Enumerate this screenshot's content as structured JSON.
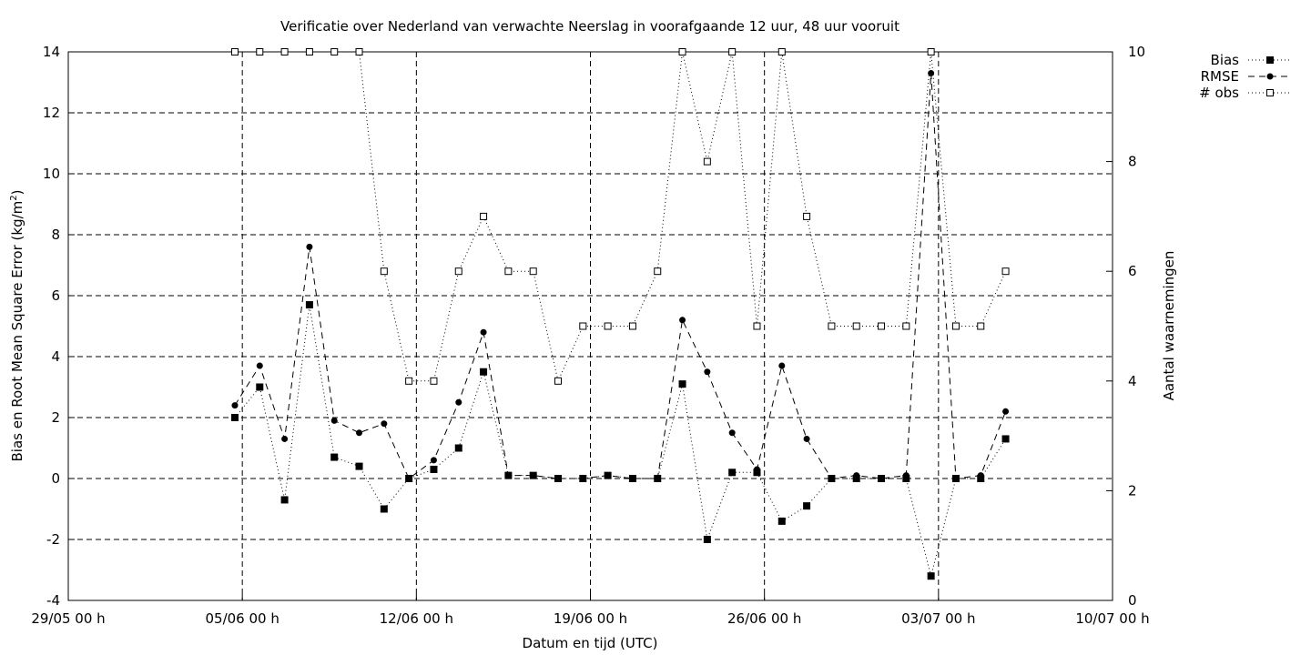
{
  "chart_data": {
    "type": "line",
    "title": "Verificatie over Nederland van verwachte Neerslag in voorafgaande 12 uur, 48 uur vooruit",
    "xlabel": "Datum en tijd (UTC)",
    "ylabel_left_main": "Bias en Root Mean Square Error (kg/m",
    "ylabel_left_sup": "2",
    "ylabel_left_end": ")",
    "ylabel_right": "Aantal waarnemingen",
    "x_ticks": [
      "29/05 00 h",
      "05/06 00 h",
      "12/06 00 h",
      "19/06 00 h",
      "26/06 00 h",
      "03/07 00 h",
      "10/07 00 h"
    ],
    "xlim_days": [
      0,
      42
    ],
    "ylim_left": [
      -4,
      14
    ],
    "y_ticks_left": [
      "-4",
      "-2",
      "0",
      "2",
      "4",
      "6",
      "8",
      "10",
      "12",
      "14"
    ],
    "ylim_right": [
      0,
      10
    ],
    "y_ticks_right": [
      "0",
      "2",
      "4",
      "6",
      "8",
      "10"
    ],
    "grid": true,
    "legend_position": "top-right outside",
    "x_days": [
      6.7,
      7.7,
      8.7,
      9.7,
      10.7,
      11.7,
      12.7,
      13.7,
      14.7,
      15.7,
      16.7,
      17.7,
      18.7,
      19.7,
      20.7,
      21.7,
      22.7,
      23.7,
      24.7,
      25.7,
      26.7,
      27.7,
      28.7,
      29.7,
      30.7,
      31.7,
      32.7,
      33.7,
      34.7,
      35.7,
      36.7,
      37.7
    ],
    "series": [
      {
        "name": "Bias",
        "axis": "left",
        "style": "dotted",
        "marker": "filled-square",
        "values": [
          2.0,
          3.0,
          -0.7,
          5.7,
          0.7,
          0.4,
          -1.0,
          0.0,
          0.3,
          1.0,
          3.5,
          0.1,
          0.1,
          0.0,
          0.0,
          0.1,
          0.0,
          0.0,
          3.1,
          -2.0,
          0.2,
          0.2,
          -1.4,
          -0.9,
          0.0,
          0.0,
          0.0,
          0.0,
          -3.2,
          0.0,
          0.0,
          1.3
        ]
      },
      {
        "name": "RMSE",
        "axis": "left",
        "style": "dashed",
        "marker": "filled-circle",
        "values": [
          2.4,
          3.7,
          1.3,
          7.6,
          1.9,
          1.5,
          1.8,
          0.0,
          0.6,
          2.5,
          4.8,
          0.1,
          0.1,
          0.0,
          0.0,
          0.1,
          0.0,
          0.0,
          5.2,
          3.5,
          1.5,
          0.3,
          3.7,
          1.3,
          0.0,
          0.1,
          0.0,
          0.1,
          13.3,
          0.0,
          0.1,
          2.2
        ]
      },
      {
        "name": "# obs",
        "axis": "right",
        "style": "dotted",
        "marker": "open-square",
        "values": [
          10,
          10,
          10,
          10,
          10,
          10,
          6,
          4,
          4,
          6,
          7,
          6,
          6,
          4,
          5,
          5,
          5,
          6,
          10,
          8,
          10,
          5,
          10,
          7,
          5,
          5,
          5,
          5,
          10,
          5,
          5,
          6
        ]
      }
    ]
  }
}
